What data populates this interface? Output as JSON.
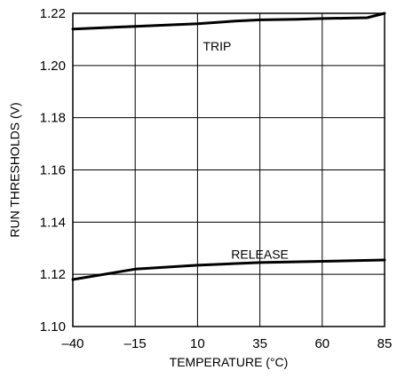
{
  "chart_data": {
    "type": "line",
    "title": "",
    "xlabel": "TEMPERATURE (°C)",
    "ylabel": "RUN THRESHOLDS (V)",
    "xlim": [
      -40,
      85
    ],
    "ylim": [
      1.1,
      1.22
    ],
    "grid": true,
    "x_ticks": [
      -40,
      -15,
      10,
      35,
      60,
      85
    ],
    "x_tick_labels": [
      "–40",
      "–15",
      "10",
      "35",
      "60",
      "85"
    ],
    "y_ticks": [
      1.1,
      1.12,
      1.14,
      1.16,
      1.18,
      1.2,
      1.22
    ],
    "y_tick_labels": [
      "1.10",
      "1.12",
      "1.14",
      "1.16",
      "1.18",
      "1.20",
      "1.22"
    ],
    "series": [
      {
        "name": "TRIP",
        "x": [
          -40,
          -15,
          10,
          25,
          35,
          50,
          60,
          78,
          85
        ],
        "y": [
          1.214,
          1.215,
          1.216,
          1.217,
          1.2175,
          1.2177,
          1.218,
          1.2183,
          1.22
        ]
      },
      {
        "name": "RELEASE",
        "x": [
          -40,
          -15,
          10,
          35,
          60,
          85
        ],
        "y": [
          1.118,
          1.122,
          1.1235,
          1.1245,
          1.125,
          1.1255
        ]
      }
    ],
    "annotations": [
      {
        "text": "TRIP",
        "x": 10,
        "y": 1.2075
      },
      {
        "text": "RELEASE",
        "x": 35,
        "y": 1.1277
      }
    ]
  }
}
